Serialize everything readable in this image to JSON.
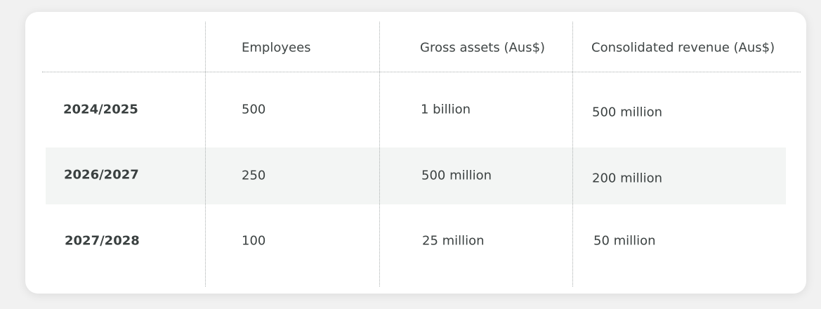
{
  "table": {
    "headers": [
      "",
      "Employees",
      "Gross assets (Aus$)",
      "Consolidated revenue (Aus$)"
    ],
    "rows": [
      {
        "year": "2024/2025",
        "employees": "500",
        "gross_assets": "1 billion",
        "revenue": "500 million"
      },
      {
        "year": "2026/2027",
        "employees": "250",
        "gross_assets": "500 million",
        "revenue": "200 million"
      },
      {
        "year": "2027/2028",
        "employees": "100",
        "gross_assets": "25 million",
        "revenue": "50 million"
      }
    ]
  },
  "colors": {
    "page_background": "#f1f1f1",
    "card_background": "#ffffff",
    "band_background": "#f3f5f4",
    "text": "#3c4242",
    "divider": "#a9aeae"
  }
}
